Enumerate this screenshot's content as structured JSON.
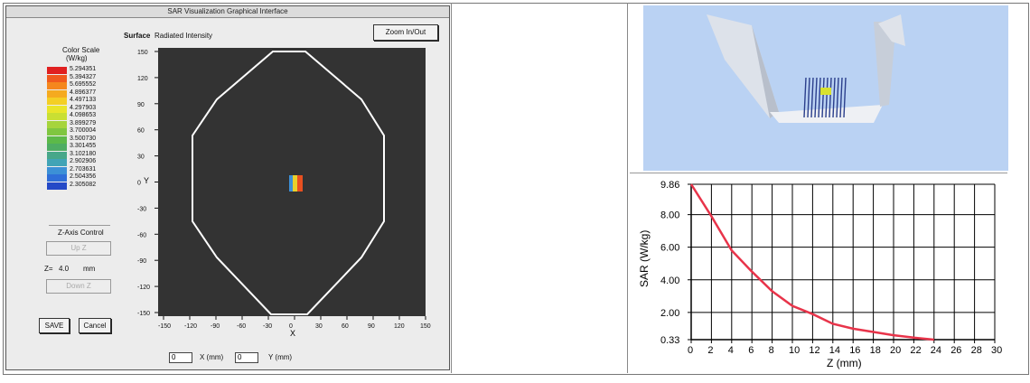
{
  "window": {
    "title": "SAR Visualization Graphical Interface"
  },
  "surface": {
    "label": "Surface",
    "value": "Radiated Intensity"
  },
  "zoom_button": "Zoom In/Out",
  "color_scale": {
    "title_line1": "Color Scale",
    "title_line2": "(W/kg)",
    "colors": [
      "#e02020",
      "#f05a1e",
      "#f5871d",
      "#f5aa1f",
      "#f4cf25",
      "#e9e52a",
      "#c9df33",
      "#a6d43c",
      "#7fc640",
      "#5cb949",
      "#4ead63",
      "#47a789",
      "#41a4b6",
      "#3c90d6",
      "#2f6ed8",
      "#2449c7"
    ],
    "values": [
      "5.294351",
      "5.394327",
      "5.695552",
      "4.896377",
      "4.497133",
      "4.297903",
      "4.098653",
      "3.899279",
      "3.700004",
      "3.500730",
      "3.301455",
      "3.102180",
      "2.902906",
      "2.703631",
      "2.504356",
      "2.305082"
    ]
  },
  "z_control": {
    "label": "Z-Axis Control",
    "up_button": "Up Z",
    "z_label": "Z=",
    "z_value": "4.0",
    "z_unit": "mm",
    "down_button": "Down Z"
  },
  "buttons": {
    "save": "SAVE",
    "cancel": "Cancel"
  },
  "map": {
    "x_axis_label": "X",
    "y_axis_label": "Y",
    "x_ticks": [
      "-150",
      "-120",
      "-90",
      "-60",
      "-30",
      "0",
      "30",
      "60",
      "90",
      "120",
      "150"
    ],
    "y_ticks": [
      "150",
      "120",
      "90",
      "60",
      "30",
      "0",
      "-30",
      "-60",
      "-90",
      "-120",
      "-150"
    ]
  },
  "xy_inputs": {
    "x_value": "0",
    "x_label": "X (mm)",
    "y_value": "0",
    "y_label": "Y (mm)"
  },
  "chart_data": {
    "type": "line",
    "xlabel": "Z (mm)",
    "ylabel": "SAR (W/kg)",
    "x_ticks": [
      0,
      2,
      4,
      6,
      8,
      10,
      12,
      14,
      16,
      18,
      20,
      22,
      24,
      26,
      28,
      30
    ],
    "y_ticks": [
      "0.33",
      "2.00",
      "4.00",
      "6.00",
      "8.00",
      "9.86"
    ],
    "y_tick_values": [
      0.33,
      2.0,
      4.0,
      6.0,
      8.0,
      9.86
    ],
    "xlim": [
      0,
      30
    ],
    "ylim": [
      0.33,
      9.86
    ],
    "grid": true,
    "line_color": "#e8344a",
    "series": [
      {
        "x": [
          0,
          2,
          4,
          6,
          8,
          10,
          12,
          14,
          16,
          18,
          20,
          22,
          24
        ],
        "y": [
          9.86,
          7.9,
          5.8,
          4.5,
          3.3,
          2.4,
          1.9,
          1.3,
          1.0,
          0.8,
          0.6,
          0.45,
          0.33
        ]
      }
    ]
  }
}
